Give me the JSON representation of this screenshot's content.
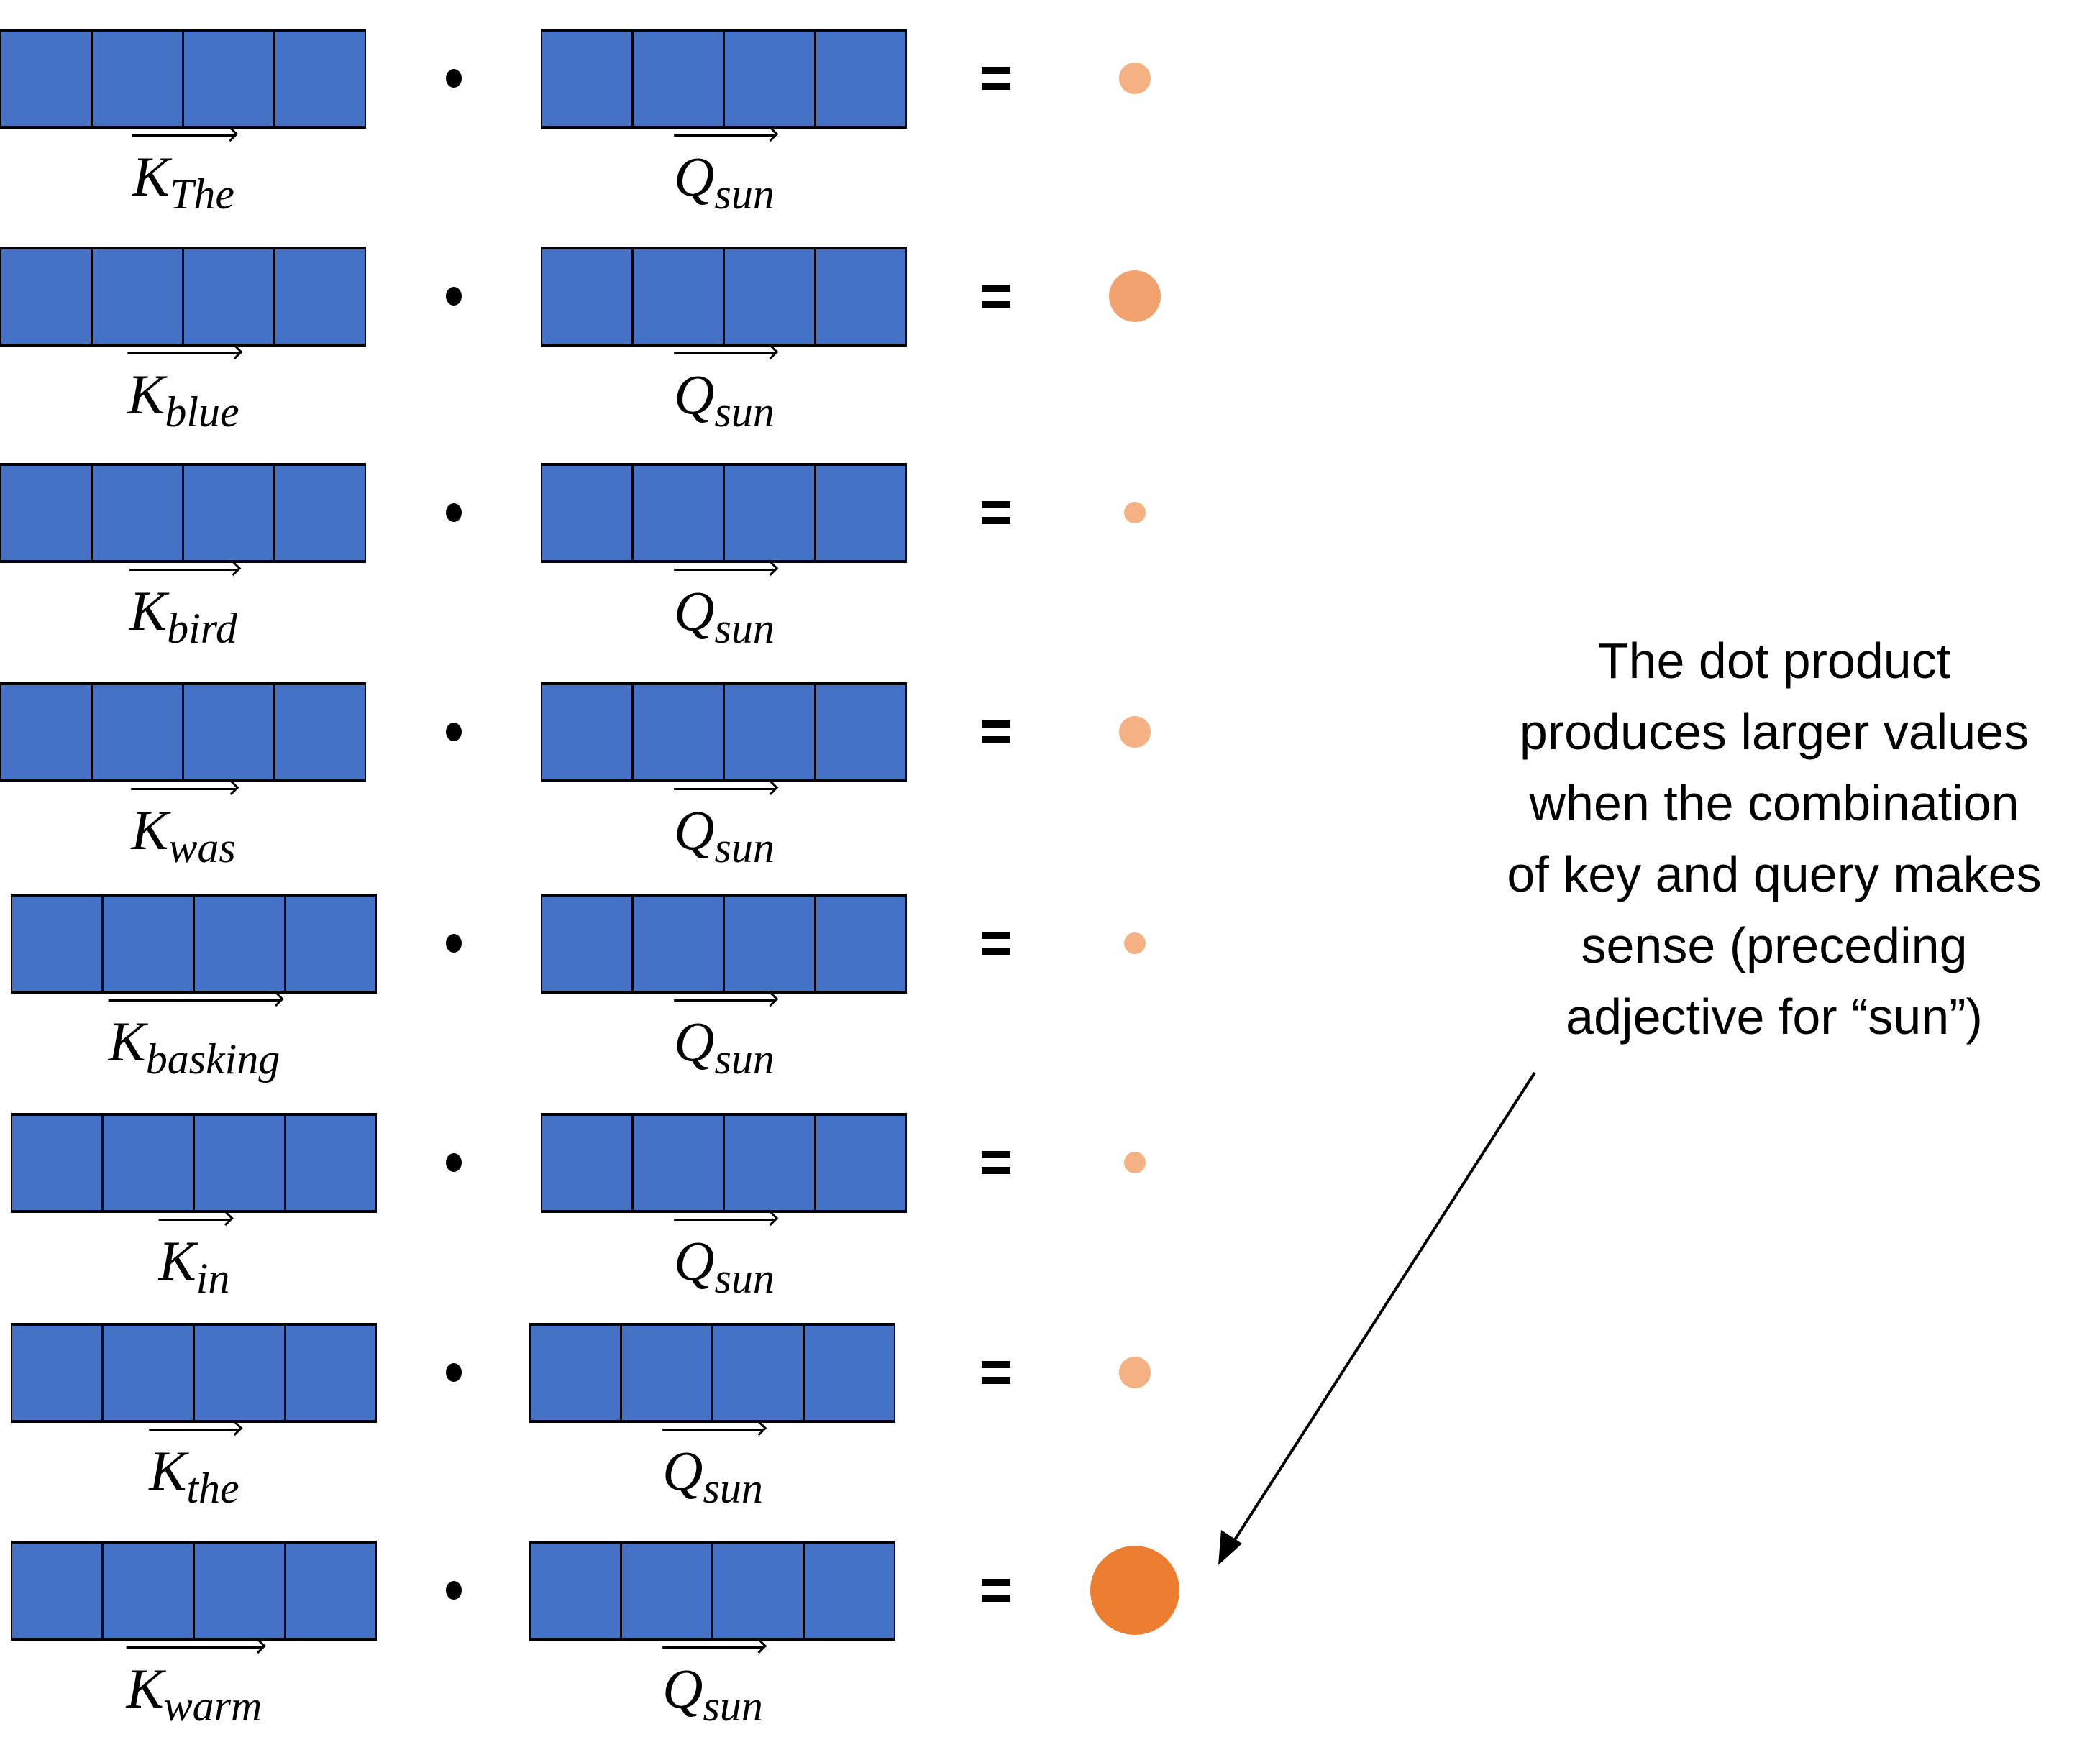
{
  "rows": [
    {
      "key": "The",
      "query": "sun",
      "score": 0.35,
      "color": "#f4b183"
    },
    {
      "key": "blue",
      "query": "sun",
      "score": 0.58,
      "color": "#f1a26e"
    },
    {
      "key": "bird",
      "query": "sun",
      "score": 0.24,
      "color": "#f4b183"
    },
    {
      "key": "was",
      "query": "sun",
      "score": 0.35,
      "color": "#f4b183"
    },
    {
      "key": "basking",
      "query": "sun",
      "score": 0.24,
      "color": "#f4b183"
    },
    {
      "key": "in",
      "query": "sun",
      "score": 0.24,
      "color": "#f4b183"
    },
    {
      "key": "the",
      "query": "sun",
      "score": 0.35,
      "color": "#f4b183"
    },
    {
      "key": "warm",
      "query": "sun",
      "score": 1.0,
      "color": "#ed7d31"
    }
  ],
  "symbols": {
    "key": "K",
    "query": "Q",
    "vector_cells": 4,
    "cell_color": "#4472c4"
  },
  "note": {
    "lines": [
      "The dot product",
      "produces larger values",
      "when the combination",
      "of key and query makes",
      "sense (preceding",
      "adjective for “sun”)"
    ]
  }
}
